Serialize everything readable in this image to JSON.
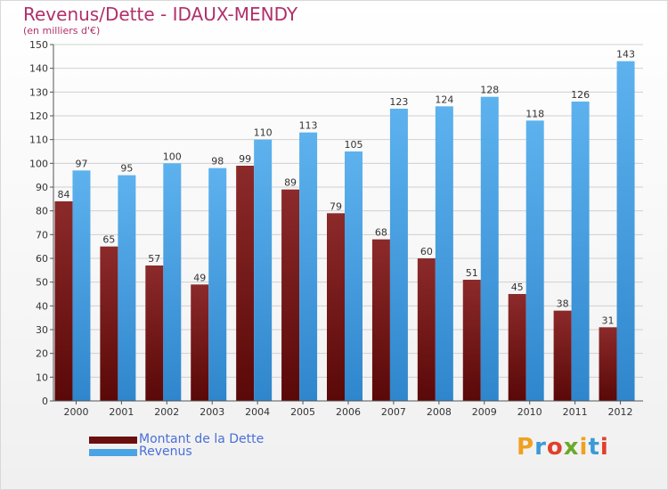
{
  "header": {
    "title": "Revenus/Dette - IDAUX-MENDY",
    "subtitle": "(en milliers d'€)"
  },
  "logo": {
    "letters": [
      "P",
      "r",
      "o",
      "x",
      "i",
      "t",
      "i"
    ],
    "colors": [
      "#f0a020",
      "#3a9ad8",
      "#e0402a",
      "#6aaa2a",
      "#f0a020",
      "#3a9ad8",
      "#e0402a"
    ]
  },
  "chart_data": {
    "type": "bar",
    "title": "Revenus/Dette - IDAUX-MENDY",
    "subtitle": "(en milliers d'€)",
    "categories": [
      "2000",
      "2001",
      "2002",
      "2003",
      "2004",
      "2005",
      "2006",
      "2007",
      "2008",
      "2009",
      "2010",
      "2011",
      "2012"
    ],
    "series": [
      {
        "name": "Montant de la Dette",
        "color": "#7a1a1a",
        "values": [
          84,
          65,
          57,
          49,
          99,
          89,
          79,
          68,
          60,
          51,
          45,
          38,
          31
        ]
      },
      {
        "name": "Revenus",
        "color": "#4aa3e3",
        "values": [
          97,
          95,
          100,
          98,
          110,
          113,
          105,
          123,
          124,
          128,
          118,
          126,
          143
        ]
      }
    ],
    "ylim": [
      0,
      150
    ],
    "yticks": [
      0,
      10,
      20,
      30,
      40,
      50,
      60,
      70,
      80,
      90,
      100,
      110,
      120,
      130,
      140,
      150
    ],
    "grid": true,
    "legend": "bottom-left"
  }
}
